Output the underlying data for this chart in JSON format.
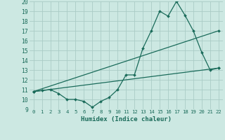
{
  "xlabel": "Humidex (Indice chaleur)",
  "xlim": [
    -0.5,
    22.5
  ],
  "ylim": [
    9,
    20
  ],
  "xticks": [
    0,
    1,
    2,
    3,
    4,
    5,
    6,
    7,
    8,
    9,
    10,
    11,
    12,
    13,
    14,
    15,
    16,
    17,
    18,
    19,
    20,
    21,
    22
  ],
  "yticks": [
    9,
    10,
    11,
    12,
    13,
    14,
    15,
    16,
    17,
    18,
    19,
    20
  ],
  "bg_color": "#cce8e2",
  "grid_color": "#aaccc6",
  "line_color": "#1a6b5a",
  "lines": [
    {
      "x": [
        0,
        1,
        2,
        3,
        4,
        5,
        6,
        7,
        8,
        9,
        10,
        11,
        12,
        13,
        14,
        15,
        16,
        17,
        18,
        19,
        20,
        21,
        22
      ],
      "y": [
        10.8,
        10.9,
        11.0,
        10.6,
        10.0,
        10.0,
        9.8,
        9.2,
        9.8,
        10.2,
        11.0,
        12.5,
        12.5,
        15.2,
        17.0,
        19.0,
        18.5,
        20.0,
        18.6,
        17.0,
        14.8,
        13.0,
        13.2
      ]
    },
    {
      "x": [
        0,
        22
      ],
      "y": [
        10.8,
        17.0
      ]
    },
    {
      "x": [
        0,
        22
      ],
      "y": [
        10.8,
        13.2
      ]
    }
  ]
}
